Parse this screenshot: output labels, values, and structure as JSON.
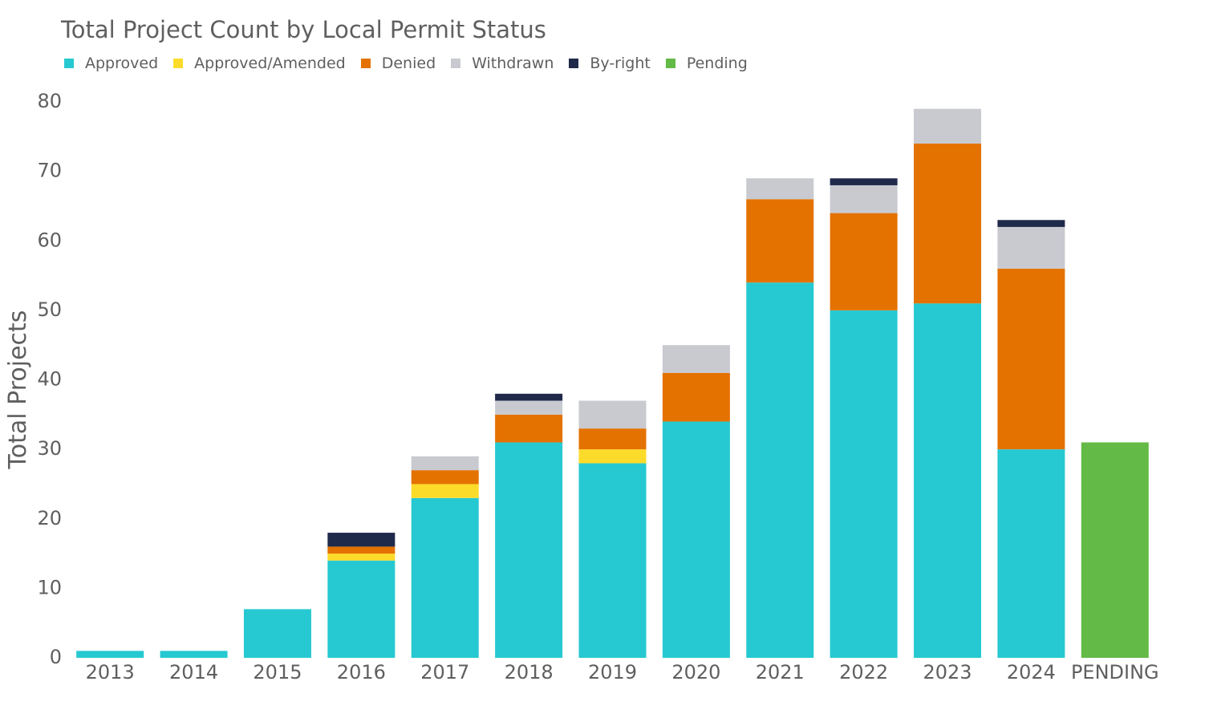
{
  "chart_data": {
    "type": "bar",
    "stacked": true,
    "title": "Total Project Count by Local Permit Status",
    "xlabel": "",
    "ylabel": "Total Projects",
    "ylim": [
      0,
      80
    ],
    "yticks": [
      0,
      10,
      20,
      30,
      40,
      50,
      60,
      70,
      80
    ],
    "grid": false,
    "legend_position": "top-left",
    "categories": [
      "2013",
      "2014",
      "2015",
      "2016",
      "2017",
      "2018",
      "2019",
      "2020",
      "2021",
      "2022",
      "2023",
      "2024",
      "PENDING"
    ],
    "series": [
      {
        "name": "Approved",
        "color": "#26C9D1",
        "values": [
          1,
          1,
          7,
          14,
          23,
          31,
          28,
          34,
          54,
          50,
          51,
          30,
          0
        ]
      },
      {
        "name": "Approved/Amended",
        "color": "#FDDB2A",
        "values": [
          0,
          0,
          0,
          1,
          2,
          0,
          2,
          0,
          0,
          0,
          0,
          0,
          0
        ]
      },
      {
        "name": "Denied",
        "color": "#E47200",
        "values": [
          0,
          0,
          0,
          1,
          2,
          4,
          3,
          7,
          12,
          14,
          23,
          26,
          0
        ]
      },
      {
        "name": "Withdrawn",
        "color": "#C8CAD0",
        "values": [
          0,
          0,
          0,
          0,
          2,
          2,
          4,
          4,
          3,
          4,
          5,
          6,
          0
        ]
      },
      {
        "name": "By-right",
        "color": "#1F2A4B",
        "values": [
          0,
          0,
          0,
          2,
          0,
          1,
          0,
          0,
          0,
          1,
          0,
          1,
          0
        ]
      },
      {
        "name": "Pending",
        "color": "#63BA46",
        "values": [
          0,
          0,
          0,
          0,
          0,
          0,
          0,
          0,
          0,
          0,
          0,
          0,
          31
        ]
      }
    ]
  }
}
